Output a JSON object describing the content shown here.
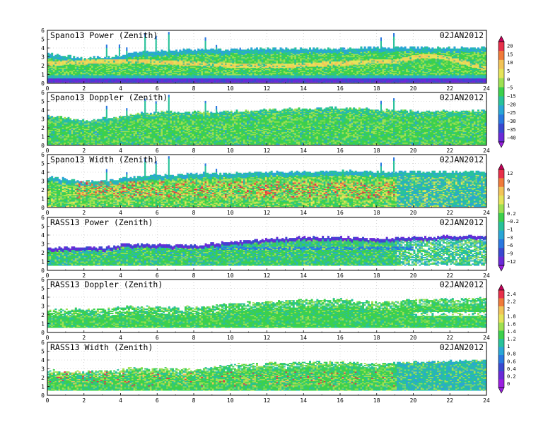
{
  "page": {
    "background": "#ffffff"
  },
  "chart_data": [
    {
      "type": "heatmap",
      "title": "Spano13 Power (Zenith)",
      "date": "02JAN2012",
      "xlim": [
        0,
        24
      ],
      "ylim": [
        0,
        6
      ],
      "xticks": [
        "0",
        "2",
        "4",
        "6",
        "8",
        "10",
        "12",
        "14",
        "16",
        "18",
        "20",
        "22",
        "24"
      ],
      "yticks": [
        "0",
        "1",
        "2",
        "3",
        "4",
        "5",
        "6"
      ],
      "grid": true,
      "colorbar_group": 0,
      "variant": "power",
      "top_profile": [
        [
          0,
          3.3
        ],
        [
          2,
          2.8
        ],
        [
          3.7,
          3.0
        ],
        [
          5,
          3.5
        ],
        [
          6,
          3.6
        ],
        [
          8,
          3.8
        ],
        [
          10,
          3.7
        ],
        [
          11,
          3.9
        ],
        [
          13,
          3.9
        ],
        [
          16,
          3.9
        ],
        [
          18,
          4.0
        ],
        [
          20,
          4.0
        ],
        [
          24,
          4.0
        ]
      ],
      "spikes": [
        [
          3.2,
          4.3
        ],
        [
          3.9,
          4.3
        ],
        [
          4.3,
          4.0
        ],
        [
          5.3,
          5.6
        ],
        [
          5.9,
          5.3
        ],
        [
          6.6,
          5.8
        ],
        [
          8.6,
          5.1
        ],
        [
          9.2,
          4.3
        ],
        [
          10.5,
          4.0
        ],
        [
          14.1,
          3.9
        ],
        [
          16.2,
          4.0
        ],
        [
          18.2,
          5.1
        ],
        [
          18.9,
          5.6
        ]
      ]
    },
    {
      "type": "heatmap",
      "title": "Spano13 Doppler (Zenith)",
      "date": "02JAN2012",
      "xlim": [
        0,
        24
      ],
      "ylim": [
        0,
        6
      ],
      "xticks": [
        "0",
        "2",
        "4",
        "6",
        "8",
        "10",
        "12",
        "14",
        "16",
        "18",
        "20",
        "22",
        "24"
      ],
      "yticks": [
        "0",
        "1",
        "2",
        "3",
        "4",
        "5",
        "6"
      ],
      "grid": true,
      "colorbar_group": 0,
      "variant": "doppler",
      "top_profile": [
        [
          0,
          3.4
        ],
        [
          2,
          2.7
        ],
        [
          3.7,
          3.2
        ],
        [
          5,
          3.6
        ],
        [
          6,
          3.7
        ],
        [
          8,
          3.7
        ],
        [
          10,
          3.8
        ],
        [
          12,
          4.0
        ],
        [
          14,
          4.1
        ],
        [
          16,
          4.2
        ],
        [
          18,
          4.0
        ],
        [
          20,
          3.8
        ],
        [
          24,
          3.9
        ]
      ],
      "spikes": [
        [
          3.2,
          4.4
        ],
        [
          4.3,
          4.2
        ],
        [
          5.3,
          5.3
        ],
        [
          5.9,
          5.0
        ],
        [
          6.6,
          5.7
        ],
        [
          8.6,
          5.0
        ],
        [
          9.2,
          4.4
        ],
        [
          18.2,
          5.0
        ],
        [
          18.9,
          5.3
        ]
      ]
    },
    {
      "type": "heatmap",
      "title": "Spano13 Width (Zenith)",
      "date": "02JAN2012",
      "xlim": [
        0,
        24
      ],
      "ylim": [
        0,
        6
      ],
      "xticks": [
        "0",
        "2",
        "4",
        "6",
        "8",
        "10",
        "12",
        "14",
        "16",
        "18",
        "20",
        "22",
        "24"
      ],
      "yticks": [
        "0",
        "1",
        "2",
        "3",
        "4",
        "5",
        "6"
      ],
      "grid": true,
      "colorbar_group": 1,
      "variant": "width",
      "top_profile": [
        [
          0,
          3.4
        ],
        [
          2,
          2.9
        ],
        [
          3.7,
          3.1
        ],
        [
          5,
          3.5
        ],
        [
          6,
          3.6
        ],
        [
          8,
          3.8
        ],
        [
          10,
          3.8
        ],
        [
          12,
          4.0
        ],
        [
          14,
          4.0
        ],
        [
          16,
          4.1
        ],
        [
          18,
          4.0
        ],
        [
          20,
          4.0
        ],
        [
          24,
          4.0
        ]
      ],
      "spikes": [
        [
          3.2,
          4.3
        ],
        [
          4.3,
          4.0
        ],
        [
          5.3,
          5.5
        ],
        [
          5.9,
          5.2
        ],
        [
          6.6,
          5.8
        ],
        [
          8.6,
          5.0
        ],
        [
          9.2,
          4.3
        ],
        [
          16.5,
          4.0
        ],
        [
          18.2,
          5.0
        ],
        [
          18.9,
          5.6
        ]
      ]
    },
    {
      "type": "heatmap",
      "title": "RASS13 Power (Zenith)",
      "date": "02JAN2012",
      "xlim": [
        0,
        24
      ],
      "ylim": [
        0,
        6
      ],
      "xticks": [
        "0",
        "2",
        "4",
        "6",
        "8",
        "10",
        "12",
        "14",
        "16",
        "18",
        "20",
        "22",
        "24"
      ],
      "yticks": [
        "0",
        "1",
        "2",
        "3",
        "4",
        "5",
        "6"
      ],
      "grid": true,
      "colorbar_group": 1,
      "variant": "rass_power",
      "top_profile": [
        [
          0,
          2.5
        ],
        [
          3.5,
          2.6
        ],
        [
          4,
          2.9
        ],
        [
          8,
          2.8
        ],
        [
          10,
          3.2
        ],
        [
          12,
          3.5
        ],
        [
          14,
          3.7
        ],
        [
          16,
          3.7
        ],
        [
          18,
          3.5
        ],
        [
          20,
          3.7
        ],
        [
          24,
          3.9
        ]
      ],
      "spikes": []
    },
    {
      "type": "heatmap",
      "title": "RASS13 Doppler (Zenith)",
      "date": "02JAN2012",
      "xlim": [
        0,
        24
      ],
      "ylim": [
        0,
        6
      ],
      "xticks": [
        "0",
        "2",
        "4",
        "6",
        "8",
        "10",
        "12",
        "14",
        "16",
        "18",
        "20",
        "22",
        "24"
      ],
      "yticks": [
        "0",
        "1",
        "2",
        "3",
        "4",
        "5",
        "6"
      ],
      "grid": true,
      "colorbar_group": 2,
      "variant": "rass_doppler",
      "top_profile": [
        [
          0,
          2.6
        ],
        [
          3.5,
          2.6
        ],
        [
          4,
          2.9
        ],
        [
          8,
          2.8
        ],
        [
          10,
          3.2
        ],
        [
          12,
          3.5
        ],
        [
          14,
          3.7
        ],
        [
          16,
          3.7
        ],
        [
          18,
          3.4
        ],
        [
          20,
          3.6
        ],
        [
          24,
          3.9
        ]
      ],
      "spikes": []
    },
    {
      "type": "heatmap",
      "title": "RASS13 Width (Zenith)",
      "date": "02JAN2012",
      "xlim": [
        0,
        24
      ],
      "ylim": [
        0,
        6
      ],
      "xticks": [
        "0",
        "2",
        "4",
        "6",
        "8",
        "10",
        "12",
        "14",
        "16",
        "18",
        "20",
        "22",
        "24"
      ],
      "yticks": [
        "0",
        "1",
        "2",
        "3",
        "4",
        "5",
        "6"
      ],
      "grid": true,
      "colorbar_group": 2,
      "variant": "rass_width",
      "top_profile": [
        [
          0,
          2.7
        ],
        [
          3.5,
          2.7
        ],
        [
          4,
          3.0
        ],
        [
          8,
          2.9
        ],
        [
          10,
          3.4
        ],
        [
          12,
          3.6
        ],
        [
          14,
          3.7
        ],
        [
          16,
          3.8
        ],
        [
          18,
          3.5
        ],
        [
          20,
          3.7
        ],
        [
          24,
          3.9
        ]
      ],
      "spikes": []
    }
  ],
  "colorbars": [
    {
      "labels": [
        "20",
        "15",
        "10",
        "5",
        "0",
        "−5",
        "−15",
        "−20",
        "−25",
        "−30",
        "−35",
        "−40"
      ],
      "colors": [
        "#c4005a",
        "#e8304a",
        "#f07a3a",
        "#f2c458",
        "#e6e45a",
        "#9ee052",
        "#3cd04c",
        "#28c29a",
        "#2aa6d6",
        "#2a78e0",
        "#3a48d0",
        "#6a2ad8",
        "#9a1ee0"
      ]
    },
    {
      "labels": [
        "12",
        "9",
        "6",
        "3",
        "1",
        "0.2",
        "−0.2",
        "−1",
        "−3",
        "−6",
        "−9",
        "−12"
      ],
      "colors": [
        "#c4005a",
        "#e8304a",
        "#f07a3a",
        "#f2c458",
        "#e6e45a",
        "#9ee052",
        "#3cd04c",
        "#28c29a",
        "#2aa6d6",
        "#2a78e0",
        "#3a48d0",
        "#6a2ad8",
        "#9a1ee0"
      ]
    },
    {
      "labels": [
        "2.4",
        "2.2",
        "2",
        "1.8",
        "1.6",
        "1.4",
        "1.2",
        "1",
        "0.8",
        "0.6",
        "0.4",
        "0.2",
        "0"
      ],
      "colors": [
        "#c4005a",
        "#e8304a",
        "#f07a3a",
        "#f2c458",
        "#e6e45a",
        "#9ee052",
        "#3cd04c",
        "#28c29a",
        "#2aa6d6",
        "#2a78e0",
        "#3a48d0",
        "#6a2ad8",
        "#9a1ee0",
        "#9a1ee0"
      ]
    }
  ]
}
